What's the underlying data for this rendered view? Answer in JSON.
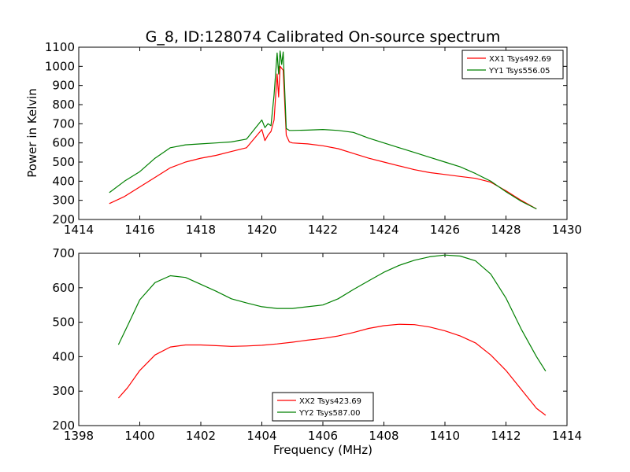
{
  "figure": {
    "title": "G_8, ID:128074 Calibrated On-source spectrum",
    "ylabel": "Power in Kelvin",
    "xlabel": "Frequency (MHz)"
  },
  "chart_data": [
    {
      "type": "line",
      "xlim": [
        1414,
        1430
      ],
      "ylim": [
        200,
        1100
      ],
      "xticks": [
        1414,
        1416,
        1418,
        1420,
        1422,
        1424,
        1426,
        1428,
        1430
      ],
      "yticks": [
        200,
        300,
        400,
        500,
        600,
        700,
        800,
        900,
        1000,
        1100
      ],
      "legend_position": "top-right",
      "grid": false,
      "series": [
        {
          "name": "XX1 Tsys492.69",
          "color": "#ff0000",
          "points": [
            [
              1415.0,
              283
            ],
            [
              1415.5,
              320
            ],
            [
              1416.0,
              370
            ],
            [
              1416.5,
              420
            ],
            [
              1417.0,
              470
            ],
            [
              1417.5,
              500
            ],
            [
              1418.0,
              520
            ],
            [
              1418.5,
              535
            ],
            [
              1419.0,
              555
            ],
            [
              1419.5,
              575
            ],
            [
              1420.0,
              670
            ],
            [
              1420.1,
              612
            ],
            [
              1420.2,
              640
            ],
            [
              1420.3,
              660
            ],
            [
              1420.4,
              720
            ],
            [
              1420.5,
              960
            ],
            [
              1420.55,
              840
            ],
            [
              1420.6,
              1000
            ],
            [
              1420.7,
              980
            ],
            [
              1420.8,
              640
            ],
            [
              1420.9,
              605
            ],
            [
              1421.0,
              600
            ],
            [
              1421.5,
              595
            ],
            [
              1422.0,
              585
            ],
            [
              1422.5,
              570
            ],
            [
              1423.0,
              545
            ],
            [
              1423.5,
              520
            ],
            [
              1424.0,
              500
            ],
            [
              1424.5,
              480
            ],
            [
              1425.0,
              460
            ],
            [
              1425.5,
              445
            ],
            [
              1426.0,
              435
            ],
            [
              1426.5,
              425
            ],
            [
              1427.0,
              415
            ],
            [
              1427.5,
              395
            ],
            [
              1428.0,
              350
            ],
            [
              1428.5,
              300
            ],
            [
              1429.0,
              255
            ]
          ]
        },
        {
          "name": "YY1 Tsys556.05",
          "color": "#008000",
          "points": [
            [
              1415.0,
              340
            ],
            [
              1415.5,
              400
            ],
            [
              1416.0,
              450
            ],
            [
              1416.5,
              520
            ],
            [
              1417.0,
              575
            ],
            [
              1417.5,
              590
            ],
            [
              1418.0,
              595
            ],
            [
              1418.5,
              600
            ],
            [
              1419.0,
              605
            ],
            [
              1419.5,
              620
            ],
            [
              1420.0,
              720
            ],
            [
              1420.1,
              680
            ],
            [
              1420.2,
              700
            ],
            [
              1420.3,
              690
            ],
            [
              1420.4,
              850
            ],
            [
              1420.5,
              1070
            ],
            [
              1420.55,
              960
            ],
            [
              1420.6,
              1080
            ],
            [
              1420.65,
              1010
            ],
            [
              1420.7,
              1075
            ],
            [
              1420.8,
              675
            ],
            [
              1420.9,
              665
            ],
            [
              1421.0,
              665
            ],
            [
              1421.5,
              667
            ],
            [
              1422.0,
              670
            ],
            [
              1422.5,
              665
            ],
            [
              1423.0,
              655
            ],
            [
              1423.5,
              625
            ],
            [
              1424.0,
              600
            ],
            [
              1424.5,
              575
            ],
            [
              1425.0,
              550
            ],
            [
              1425.5,
              525
            ],
            [
              1426.0,
              500
            ],
            [
              1426.5,
              475
            ],
            [
              1427.0,
              440
            ],
            [
              1427.5,
              400
            ],
            [
              1428.0,
              345
            ],
            [
              1428.5,
              295
            ],
            [
              1429.0,
              255
            ]
          ]
        }
      ]
    },
    {
      "type": "line",
      "xlim": [
        1398,
        1414
      ],
      "ylim": [
        200,
        700
      ],
      "xticks": [
        1398,
        1400,
        1402,
        1404,
        1406,
        1408,
        1410,
        1412,
        1414
      ],
      "yticks": [
        200,
        300,
        400,
        500,
        600,
        700
      ],
      "legend_position": "bottom-center",
      "grid": false,
      "series": [
        {
          "name": "XX2 Tsys423.69",
          "color": "#ff0000",
          "points": [
            [
              1399.3,
              280
            ],
            [
              1399.6,
              310
            ],
            [
              1400.0,
              360
            ],
            [
              1400.5,
              405
            ],
            [
              1401.0,
              428
            ],
            [
              1401.5,
              434
            ],
            [
              1402.0,
              434
            ],
            [
              1402.5,
              432
            ],
            [
              1403.0,
              430
            ],
            [
              1403.5,
              431
            ],
            [
              1404.0,
              433
            ],
            [
              1404.5,
              437
            ],
            [
              1405.0,
              442
            ],
            [
              1405.5,
              448
            ],
            [
              1406.0,
              453
            ],
            [
              1406.5,
              460
            ],
            [
              1407.0,
              470
            ],
            [
              1407.5,
              482
            ],
            [
              1408.0,
              490
            ],
            [
              1408.5,
              494
            ],
            [
              1409.0,
              493
            ],
            [
              1409.5,
              486
            ],
            [
              1410.0,
              475
            ],
            [
              1410.5,
              460
            ],
            [
              1411.0,
              440
            ],
            [
              1411.5,
              405
            ],
            [
              1412.0,
              360
            ],
            [
              1412.5,
              305
            ],
            [
              1413.0,
              250
            ],
            [
              1413.3,
              230
            ]
          ]
        },
        {
          "name": "YY2 Tsys587.00",
          "color": "#008000",
          "points": [
            [
              1399.3,
              435
            ],
            [
              1399.6,
              490
            ],
            [
              1400.0,
              565
            ],
            [
              1400.5,
              615
            ],
            [
              1401.0,
              635
            ],
            [
              1401.5,
              630
            ],
            [
              1402.0,
              610
            ],
            [
              1402.5,
              590
            ],
            [
              1403.0,
              568
            ],
            [
              1403.5,
              556
            ],
            [
              1404.0,
              545
            ],
            [
              1404.5,
              540
            ],
            [
              1405.0,
              540
            ],
            [
              1405.5,
              545
            ],
            [
              1406.0,
              550
            ],
            [
              1406.5,
              568
            ],
            [
              1407.0,
              595
            ],
            [
              1407.5,
              620
            ],
            [
              1408.0,
              645
            ],
            [
              1408.5,
              665
            ],
            [
              1409.0,
              680
            ],
            [
              1409.5,
              690
            ],
            [
              1410.0,
              695
            ],
            [
              1410.5,
              692
            ],
            [
              1411.0,
              678
            ],
            [
              1411.5,
              640
            ],
            [
              1412.0,
              570
            ],
            [
              1412.5,
              480
            ],
            [
              1413.0,
              400
            ],
            [
              1413.3,
              358
            ]
          ]
        }
      ]
    }
  ]
}
